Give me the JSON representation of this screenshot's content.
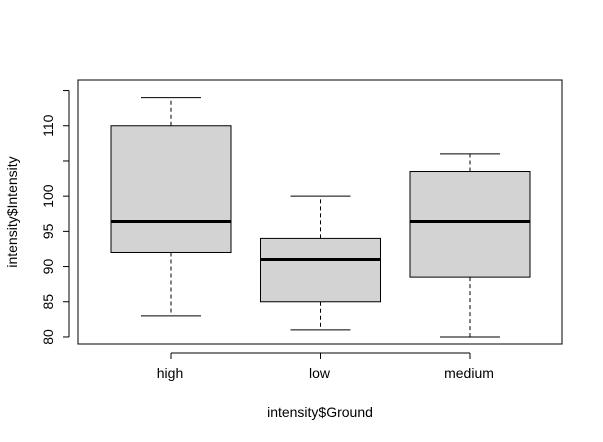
{
  "chart_data": {
    "type": "boxplot",
    "xlabel": "intensity$Ground",
    "ylabel": "intensity$Intensity",
    "categories": [
      "high",
      "low",
      "medium"
    ],
    "boxes": [
      {
        "category": "high",
        "whisker_low": 83,
        "q1": 92,
        "median": 96.4,
        "q3": 110,
        "whisker_high": 114
      },
      {
        "category": "low",
        "whisker_low": 81,
        "q1": 85,
        "median": 91,
        "q3": 94,
        "whisker_high": 100
      },
      {
        "category": "medium",
        "whisker_low": 80,
        "q1": 88.5,
        "median": 96.4,
        "q3": 103.5,
        "whisker_high": 106
      }
    ],
    "ylim": [
      79,
      116.5
    ],
    "yticks": [
      80,
      85,
      90,
      95,
      100,
      110
    ],
    "ytick_labels": [
      "80",
      "85",
      "90",
      "95",
      "100",
      "110"
    ],
    "grid": false
  }
}
